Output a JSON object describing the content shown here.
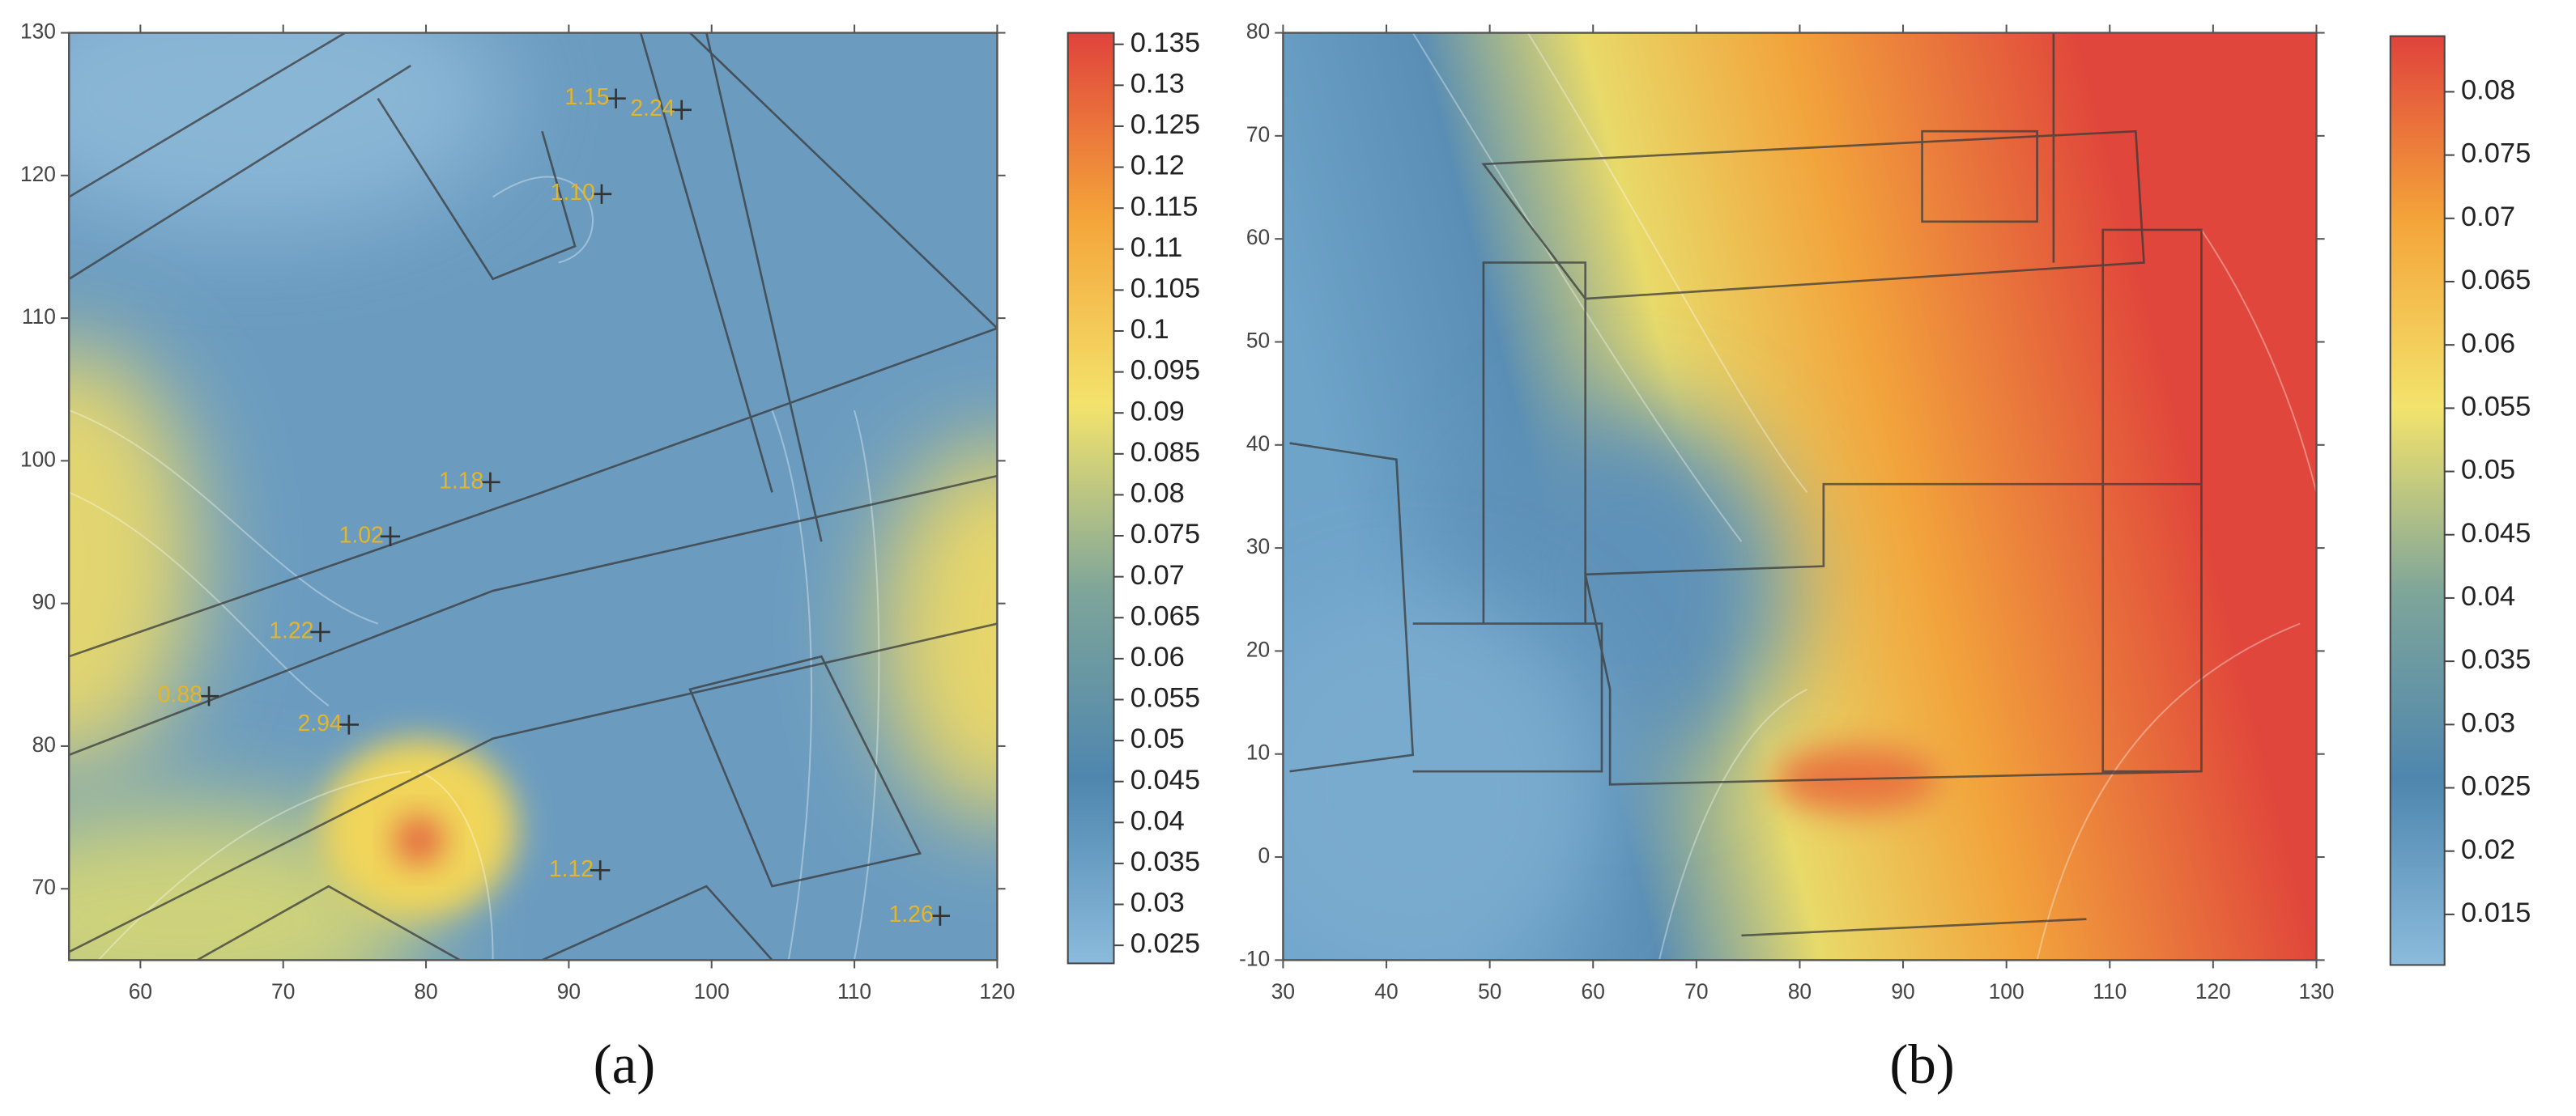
{
  "chart_data": [
    {
      "type": "heatmap",
      "caption": "(a)",
      "xlim": [
        55,
        120
      ],
      "ylim": [
        65,
        130
      ],
      "xticks": [
        60,
        70,
        80,
        90,
        100,
        110,
        120
      ],
      "yticks": [
        70,
        80,
        90,
        100,
        110,
        120,
        130
      ],
      "zlim": [
        0.0228,
        0.1364
      ],
      "zticks": [
        0.025,
        0.03,
        0.035,
        0.04,
        0.045,
        0.05,
        0.055,
        0.06,
        0.065,
        0.07,
        0.075,
        0.08,
        0.085,
        0.09,
        0.095,
        0.1,
        0.105,
        0.11,
        0.115,
        0.12,
        0.125,
        0.13,
        0.135
      ],
      "colorscale": [
        "#8bbbdc",
        "#4e86ae",
        "#7ea59a",
        "#f3e36c",
        "#f4a53a",
        "#e0433c"
      ],
      "annotations": [
        {
          "x": 93.3,
          "y": 125.4,
          "text": "1.15"
        },
        {
          "x": 97.9,
          "y": 124.6,
          "text": "2.24"
        },
        {
          "x": 92.3,
          "y": 118.7,
          "text": "1.10"
        },
        {
          "x": 84.5,
          "y": 98.5,
          "text": "1.18"
        },
        {
          "x": 77.5,
          "y": 94.7,
          "text": "1.02"
        },
        {
          "x": 72.6,
          "y": 88.0,
          "text": "1.22"
        },
        {
          "x": 64.8,
          "y": 83.5,
          "text": "0.88"
        },
        {
          "x": 74.6,
          "y": 81.5,
          "text": "2.94"
        },
        {
          "x": 92.2,
          "y": 71.3,
          "text": "1.12"
        },
        {
          "x": 116.0,
          "y": 68.1,
          "text": "1.26"
        }
      ]
    },
    {
      "type": "heatmap",
      "caption": "(b)",
      "xlim": [
        30,
        130
      ],
      "ylim": [
        -10,
        80
      ],
      "xticks": [
        30,
        40,
        50,
        60,
        70,
        80,
        90,
        100,
        110,
        120,
        130
      ],
      "yticks": [
        -10,
        0,
        10,
        20,
        30,
        40,
        50,
        60,
        70,
        80
      ],
      "zlim": [
        0.011,
        0.0844
      ],
      "zticks": [
        0.015,
        0.02,
        0.025,
        0.03,
        0.035,
        0.04,
        0.045,
        0.05,
        0.055,
        0.06,
        0.065,
        0.07,
        0.075,
        0.08
      ],
      "colorscale": [
        "#8bbbdc",
        "#4e86ae",
        "#7ea59a",
        "#f3e36c",
        "#f4a53a",
        "#e0433c"
      ],
      "annotations": []
    }
  ]
}
